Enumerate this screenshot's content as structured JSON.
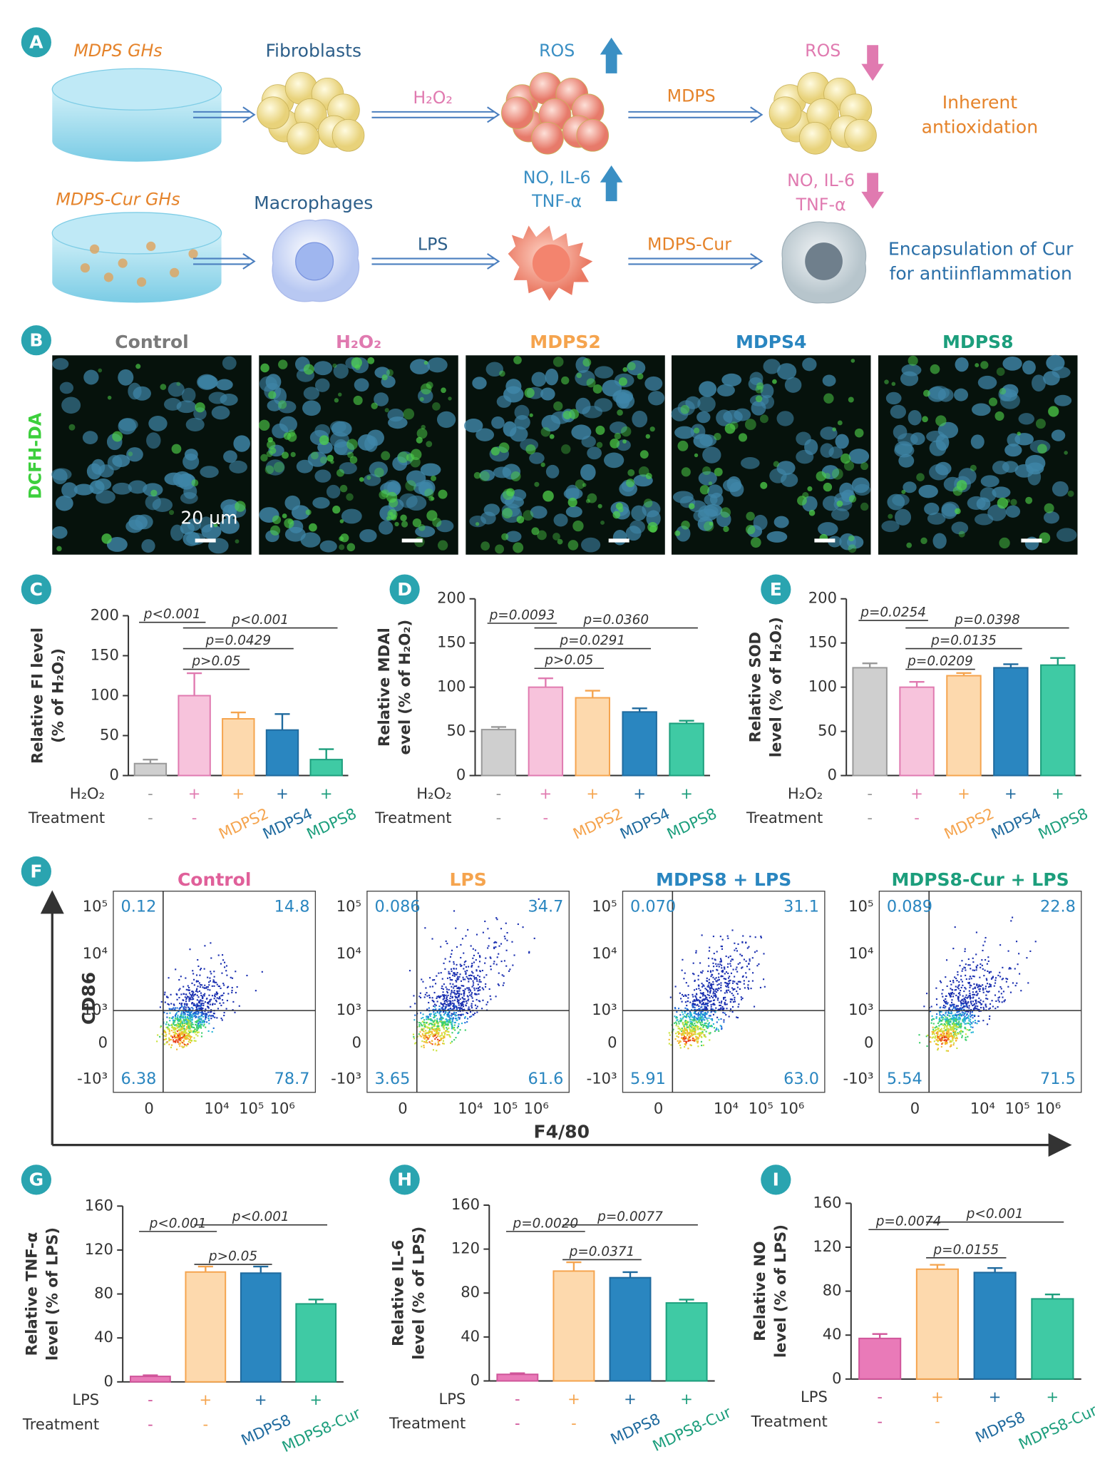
{
  "panel_labels": [
    "A",
    "B",
    "C",
    "D",
    "E",
    "F",
    "G",
    "H",
    "I"
  ],
  "panel_a": {
    "row1": {
      "material": "MDPS GHs",
      "cell": "Fibroblasts",
      "stimulus": "H₂O₂",
      "marker": "ROS",
      "treatment": "MDPS",
      "marker_after": "ROS",
      "outcome": [
        "Inherent",
        "antioxidation"
      ]
    },
    "row2": {
      "material": "MDPS-Cur GHs",
      "cell": "Macrophages",
      "stimulus": "LPS",
      "marker": [
        "NO, IL-6",
        "TNF-α"
      ],
      "treatment": "MDPS-Cur",
      "marker_after": [
        "NO, IL-6",
        "TNF-α"
      ],
      "outcome": [
        "Encapsulation of Cur",
        "for antiinflammation"
      ]
    }
  },
  "panel_b": {
    "stain": "DCFH-DA",
    "scale_bar": "20 μm",
    "groups": [
      {
        "name": "Control",
        "color": "#7a7a7a"
      },
      {
        "name": "H₂O₂",
        "color": "#e07ab0"
      },
      {
        "name": "MDPS2",
        "color": "#f5a44e"
      },
      {
        "name": "MDPS4",
        "color": "#2a86c0"
      },
      {
        "name": "MDPS8",
        "color": "#1c9e7c"
      }
    ]
  },
  "chart_data": [
    {
      "type": "bar",
      "ylabel": [
        "Relative FI level",
        "(% of H₂O₂)"
      ],
      "ylim": [
        0,
        200
      ],
      "yticks": [
        0,
        50,
        100,
        150,
        200
      ],
      "values": [
        15,
        100,
        71,
        57,
        20
      ],
      "errors": [
        5,
        28,
        8,
        20,
        13
      ],
      "colors": [
        "#cfcfcf",
        "#f7c3dc",
        "#fdd9ad",
        "#2a86c0",
        "#3fcaa4"
      ],
      "edge_colors": [
        "#999999",
        "#e07ab0",
        "#f5a44e",
        "#1f6a9e",
        "#1c9e7c"
      ],
      "rows": [
        {
          "label": "H₂O₂",
          "values": [
            "-",
            "+",
            "+",
            "+",
            "+"
          ]
        },
        {
          "label": "Treatment",
          "values": [
            "-",
            "-",
            "MDPS2",
            "MDPS4",
            "MDPS8"
          ]
        }
      ],
      "annotations": [
        "p<0.001",
        "p<0.001",
        "p=0.0429",
        "p>0.05"
      ]
    },
    {
      "type": "bar",
      "ylabel": [
        "Relative MDAl",
        "evel (% of H₂O₂)"
      ],
      "ylim": [
        0,
        200
      ],
      "yticks": [
        0,
        50,
        100,
        150,
        200
      ],
      "values": [
        52,
        100,
        88,
        72,
        59
      ],
      "errors": [
        3,
        10,
        8,
        4,
        3
      ],
      "colors": [
        "#cfcfcf",
        "#f7c3dc",
        "#fdd9ad",
        "#2a86c0",
        "#3fcaa4"
      ],
      "edge_colors": [
        "#999999",
        "#e07ab0",
        "#f5a44e",
        "#1f6a9e",
        "#1c9e7c"
      ],
      "rows": [
        {
          "label": "H₂O₂",
          "values": [
            "-",
            "+",
            "+",
            "+",
            "+"
          ]
        },
        {
          "label": "Treatment",
          "values": [
            "-",
            "-",
            "MDPS2",
            "MDPS4",
            "MDPS8"
          ]
        }
      ],
      "annotations": [
        "p=0.0093",
        "p=0.0360",
        "p=0.0291",
        "p>0.05"
      ]
    },
    {
      "type": "bar",
      "ylabel": [
        "Relative SOD",
        "level (% of H₂O₂)"
      ],
      "ylim": [
        0,
        200
      ],
      "yticks": [
        0,
        50,
        100,
        150,
        200
      ],
      "values": [
        122,
        100,
        113,
        122,
        125
      ],
      "errors": [
        5,
        6,
        3,
        4,
        8
      ],
      "colors": [
        "#cfcfcf",
        "#f7c3dc",
        "#fdd9ad",
        "#2a86c0",
        "#3fcaa4"
      ],
      "edge_colors": [
        "#999999",
        "#e07ab0",
        "#f5a44e",
        "#1f6a9e",
        "#1c9e7c"
      ],
      "rows": [
        {
          "label": "H₂O₂",
          "values": [
            "-",
            "+",
            "+",
            "+",
            "+"
          ]
        },
        {
          "label": "Treatment",
          "values": [
            "-",
            "-",
            "MDPS2",
            "MDPS4",
            "MDPS8"
          ]
        }
      ],
      "annotations": [
        "p=0.0254",
        "p=0.0398",
        "p=0.0135",
        "p=0.0209"
      ]
    },
    {
      "type": "bar",
      "ylabel": [
        "Relative TNF-α",
        "level (% of LPS)"
      ],
      "ylim": [
        0,
        160
      ],
      "yticks": [
        0,
        40,
        80,
        120,
        160
      ],
      "values": [
        5,
        100,
        99,
        71
      ],
      "errors": [
        1,
        5,
        6,
        4
      ],
      "colors": [
        "#e97ab8",
        "#fdd9ad",
        "#2a86c0",
        "#3fcaa4"
      ],
      "edge_colors": [
        "#d0559a",
        "#f5a44e",
        "#1f6a9e",
        "#1c9e7c"
      ],
      "rows": [
        {
          "label": "LPS",
          "values": [
            "-",
            "+",
            "+",
            "+"
          ]
        },
        {
          "label": "Treatment",
          "values": [
            "-",
            "-",
            "MDPS8",
            "MDPS8-Cur"
          ]
        }
      ],
      "annotations": [
        "p<0.001",
        "p<0.001",
        "p>0.05"
      ]
    },
    {
      "type": "bar",
      "ylabel": [
        "Relative IL-6",
        "level (% of LPS)"
      ],
      "ylim": [
        0,
        160
      ],
      "yticks": [
        0,
        40,
        80,
        120,
        160
      ],
      "values": [
        6,
        100,
        94,
        71
      ],
      "errors": [
        1,
        8,
        5,
        3
      ],
      "colors": [
        "#e97ab8",
        "#fdd9ad",
        "#2a86c0",
        "#3fcaa4"
      ],
      "edge_colors": [
        "#d0559a",
        "#f5a44e",
        "#1f6a9e",
        "#1c9e7c"
      ],
      "rows": [
        {
          "label": "LPS",
          "values": [
            "-",
            "+",
            "+",
            "+"
          ]
        },
        {
          "label": "Treatment",
          "values": [
            "-",
            "-",
            "MDPS8",
            "MDPS8-Cur"
          ]
        }
      ],
      "annotations": [
        "p=0.0020",
        "p=0.0077",
        "p=0.0371"
      ]
    },
    {
      "type": "bar",
      "ylabel": [
        "Relative NO",
        "level (% of LPS)"
      ],
      "ylim": [
        0,
        160
      ],
      "yticks": [
        0,
        40,
        80,
        120,
        160
      ],
      "values": [
        37,
        100,
        97,
        73
      ],
      "errors": [
        4,
        4,
        4,
        4
      ],
      "colors": [
        "#e97ab8",
        "#fdd9ad",
        "#2a86c0",
        "#3fcaa4"
      ],
      "edge_colors": [
        "#d0559a",
        "#f5a44e",
        "#1f6a9e",
        "#1c9e7c"
      ],
      "rows": [
        {
          "label": "LPS",
          "values": [
            "-",
            "+",
            "+",
            "+"
          ]
        },
        {
          "label": "Treatment",
          "values": [
            "-",
            "-",
            "MDPS8",
            "MDPS8-Cur"
          ]
        }
      ],
      "annotations": [
        "p=0.0074",
        "p<0.001",
        "p=0.0155"
      ]
    }
  ],
  "panel_f": {
    "y_label": "CD86",
    "x_label": "F4/80",
    "yticks": [
      "10⁵",
      "10⁴",
      "10³",
      "0",
      "-10³"
    ],
    "xticks": [
      "0",
      "10⁴",
      "10⁵",
      "10⁶"
    ],
    "plots": [
      {
        "title": "Control",
        "color": "#e0609a",
        "quadrants": [
          "0.12",
          "14.8",
          "6.38",
          "78.7"
        ]
      },
      {
        "title": "LPS",
        "color": "#f5a44e",
        "quadrants": [
          "0.086",
          "34.7",
          "3.65",
          "61.6"
        ]
      },
      {
        "title": "MDPS8 + LPS",
        "color": "#2a86c0",
        "quadrants": [
          "0.070",
          "31.1",
          "5.91",
          "63.0"
        ]
      },
      {
        "title": "MDPS8-Cur + LPS",
        "color": "#1c9e7c",
        "quadrants": [
          "0.089",
          "22.8",
          "5.54",
          "71.5"
        ]
      }
    ]
  }
}
